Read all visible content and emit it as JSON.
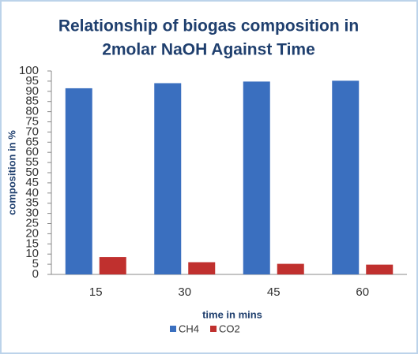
{
  "chart_data": {
    "type": "bar",
    "title": [
      "Relationship of biogas composition  in",
      "2molar NaOH Against Time"
    ],
    "x_label": "time in mins",
    "y_label": "composition in %",
    "categories": [
      "15",
      "30",
      "45",
      "60"
    ],
    "series": [
      {
        "name": "CH4",
        "color": "#3a6fbf",
        "values": [
          91.5,
          94,
          94.8,
          95.2
        ]
      },
      {
        "name": "CO2",
        "color": "#c0302e",
        "values": [
          8.5,
          6,
          5.2,
          4.8
        ]
      }
    ],
    "ylim": [
      0,
      100
    ],
    "yticks": [
      0,
      5,
      10,
      15,
      20,
      25,
      30,
      35,
      40,
      45,
      50,
      55,
      60,
      65,
      70,
      75,
      80,
      85,
      90,
      95,
      100
    ],
    "grid": false,
    "legend": "bottom"
  }
}
